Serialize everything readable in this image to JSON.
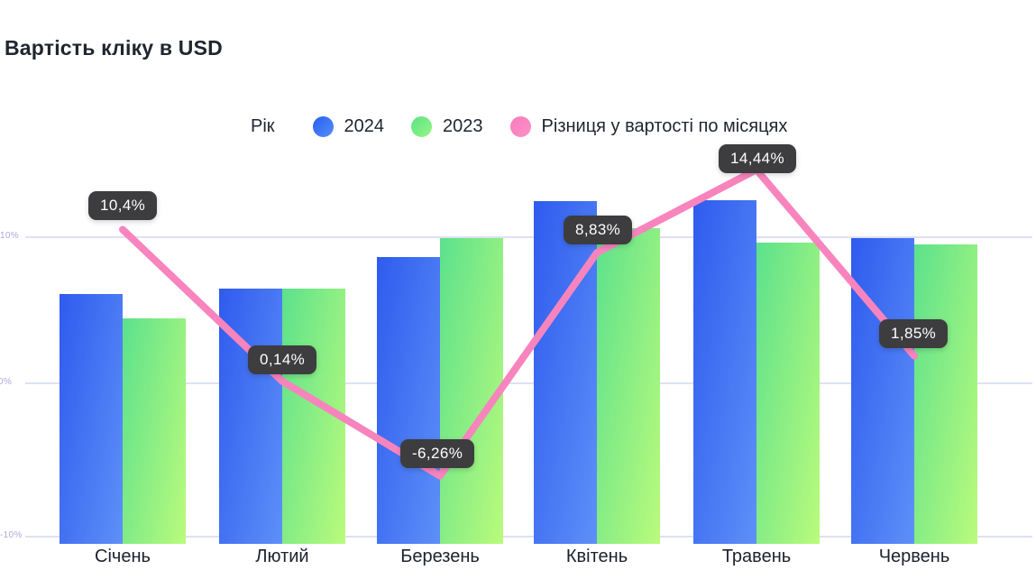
{
  "title": "Вартість кліку в USD",
  "legend": {
    "label": "Рік",
    "items": [
      {
        "id": "2024",
        "label": "2024",
        "color": "#3b6cf3"
      },
      {
        "id": "2023",
        "label": "2023",
        "color": "#79ec84"
      },
      {
        "id": "diff",
        "label": "Різниця у вартості по місяцях",
        "color": "#fa7fbe"
      }
    ]
  },
  "axis": {
    "ticks": [
      {
        "label": "10%",
        "value": 10
      },
      {
        "label": "0%",
        "value": 0
      },
      {
        "label": "-10%",
        "value": -10
      }
    ]
  },
  "chart_data": {
    "type": "combo",
    "categories": [
      "Січень",
      "Лютий",
      "Березень",
      "Квітень",
      "Травень",
      "Червень"
    ],
    "series": [
      {
        "name": "2024",
        "type": "bar",
        "unit": "relative-height-px",
        "values": [
          277,
          283,
          318,
          380,
          381,
          339
        ]
      },
      {
        "name": "2023",
        "type": "bar",
        "unit": "relative-height-px",
        "values": [
          250,
          283,
          339,
          350,
          334,
          332
        ]
      },
      {
        "name": "Різниця у вартості по місяцях",
        "type": "line",
        "unit": "percent",
        "values": [
          10.4,
          0.14,
          -6.26,
          8.83,
          14.44,
          1.85
        ],
        "point_labels": [
          "10,4%",
          "0,14%",
          "-6,26%",
          "8,83%",
          "14,44%",
          "1,85%"
        ]
      }
    ],
    "title": "Вартість кліку в USD",
    "ylabel": "",
    "y_axis_ticks_percent": [
      10,
      0,
      -10
    ],
    "grid": true,
    "legend_position": "top",
    "colors": {
      "bar_2024_gradient": [
        "#2f5bee",
        "#5d90f8"
      ],
      "bar_2023_gradient": [
        "#5ce18c",
        "#bafb7c"
      ],
      "diff_line": "#f884be",
      "gridline": "#dfe1f3",
      "tick_text": "#a9abdd",
      "tooltip_bg": "#3d3d3f",
      "tooltip_text": "#ffffff",
      "title_text": "#21252f"
    }
  }
}
